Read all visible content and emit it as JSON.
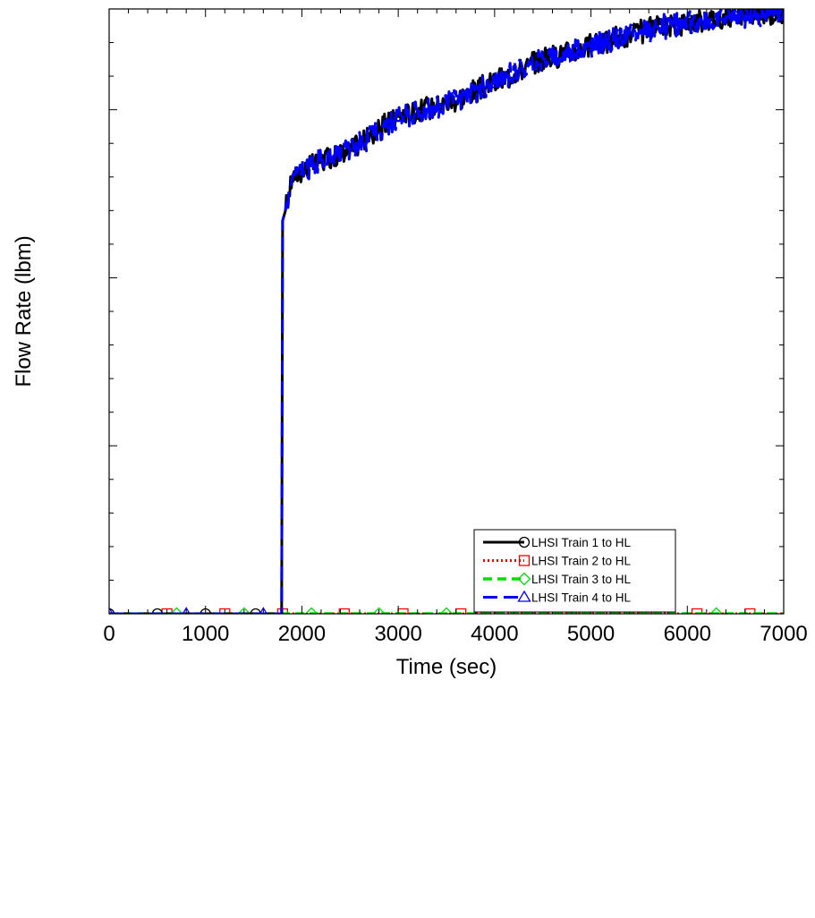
{
  "chart_data": {
    "type": "line",
    "title": "",
    "xlabel": "Time (sec)",
    "ylabel": "Flow Rate (lbm)",
    "xlim": [
      0,
      7000
    ],
    "ylim": [
      0,
      18
    ],
    "x_ticks": [
      "0",
      "1000",
      "2000",
      "3000",
      "4000",
      "5000",
      "6000",
      "7000"
    ],
    "y_tick_labels_shown": false,
    "grid": false,
    "legend_position": "center-right",
    "series": [
      {
        "name": "LHSI Train 1 to HL",
        "color": "#000000",
        "line_style": "solid",
        "marker": "circle",
        "points": [
          [
            0,
            0
          ],
          [
            1790,
            0
          ],
          [
            1800,
            11.7
          ],
          [
            1830,
            12
          ],
          [
            1900,
            13
          ],
          [
            2200,
            13.5
          ],
          [
            2500,
            13.8
          ],
          [
            3000,
            14.8
          ],
          [
            3500,
            15.2
          ],
          [
            4000,
            15.8
          ],
          [
            4500,
            16.5
          ],
          [
            5000,
            16.9
          ],
          [
            5500,
            17.3
          ],
          [
            6000,
            17.6
          ],
          [
            6500,
            17.8
          ],
          [
            7000,
            17.9
          ]
        ]
      },
      {
        "name": "LHSI Train 2 to HL",
        "color": "#ff0000",
        "line_style": "dotted",
        "marker": "square",
        "points": [
          [
            0,
            0
          ],
          [
            7000,
            0
          ]
        ]
      },
      {
        "name": "LHSI Train 3 to HL",
        "color": "#00dd00",
        "line_style": "dashed",
        "marker": "diamond",
        "points": [
          [
            0,
            0
          ],
          [
            7000,
            0
          ]
        ]
      },
      {
        "name": "LHSI Train 4 to HL",
        "color": "#0000ff",
        "line_style": "long-dash",
        "marker": "triangle",
        "points": [
          [
            0,
            0
          ],
          [
            1790,
            0
          ],
          [
            1800,
            11.7
          ],
          [
            1830,
            12
          ],
          [
            1900,
            13
          ],
          [
            2200,
            13.5
          ],
          [
            2500,
            13.8
          ],
          [
            3000,
            14.8
          ],
          [
            3500,
            15.2
          ],
          [
            4000,
            15.8
          ],
          [
            4500,
            16.5
          ],
          [
            5000,
            16.9
          ],
          [
            5500,
            17.3
          ],
          [
            6000,
            17.6
          ],
          [
            6500,
            17.8
          ],
          [
            7000,
            17.9
          ]
        ]
      }
    ]
  }
}
